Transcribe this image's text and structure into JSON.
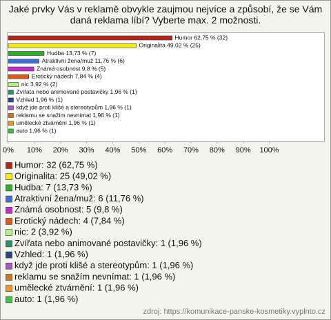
{
  "chart_data": {
    "type": "bar",
    "orientation": "horizontal",
    "title": "Jaké prvky Vás v reklamě obvykle zaujmou nejvíce a způsobí, že se Vám daná reklama líbí? Vyberte max. 2 možnosti.",
    "values": [
      62.75,
      49.02,
      13.73,
      11.76,
      9.8,
      7.84,
      3.92,
      1.96,
      1.96,
      1.96,
      1.96,
      1.96,
      1.96
    ],
    "value_labels": [
      "Humor 62,75 % (32)",
      "Originalita 49,02 % (25)",
      "Hudba 13,73 % (7)",
      "Atraktivní žena/muž 11,76 % (6)",
      "Známá osobnost 9,8 % (5)",
      "Erotický nádech 7,84 % (4)",
      "nic 3,92 % (2)",
      "Zvířata nebo animované postavičky 1,96 % (1)",
      "Vzhled 1,96 % (1)",
      "když jde proti klišé a stereotypům 1,96 % (1)",
      "reklamu se snažím nevnímat 1,96 % (1)",
      "umělecké ztvárnění 1,96 % (1)",
      "auto 1,96 % (1)"
    ],
    "colors": [
      "#b3261e",
      "#f2ea1c",
      "#2fae2f",
      "#3f6fd6",
      "#c030c8",
      "#db5a1c",
      "#b7ee86",
      "#2e8f70",
      "#27487f",
      "#a25bc0",
      "#c47a26",
      "#e89a2a",
      "#45c045"
    ],
    "legend": [
      "Humor: 32 (62,75 %)",
      "Originalita: 25 (49,02 %)",
      "Hudba: 7 (13,73 %)",
      "Atraktivní žena/muž: 6 (11,76 %)",
      "Známá osobnost: 5 (9,8 %)",
      "Erotický nádech: 4 (7,84 %)",
      "nic: 2 (3,92 %)",
      "Zvířata nebo animované postavičky: 1 (1,96 %)",
      "Vzhled: 1 (1,96 %)",
      "když jde proti klišé a stereotypům: 1 (1,96 %)",
      "reklamu se snažím nevnímat: 1 (1,96 %)",
      "umělecké ztvárnění: 1 (1,96 %)",
      "auto: 1 (1,96 %)"
    ],
    "xlim": [
      0,
      121
    ],
    "xticks": [
      {
        "value": 0,
        "label": "0%"
      },
      {
        "value": 10,
        "label": "10%"
      },
      {
        "value": 20,
        "label": "20%"
      },
      {
        "value": 30,
        "label": "30%"
      },
      {
        "value": 40,
        "label": "40%"
      },
      {
        "value": 50,
        "label": "50%"
      },
      {
        "value": 60,
        "label": "60%"
      },
      {
        "value": 70,
        "label": "70%"
      },
      {
        "value": 80,
        "label": "80%"
      },
      {
        "value": 90,
        "label": "90%"
      },
      {
        "value": 100,
        "label": "100%"
      }
    ],
    "source": "zdroj: https://komunikace-panske-kosmetiky.vyplnto.cz"
  }
}
